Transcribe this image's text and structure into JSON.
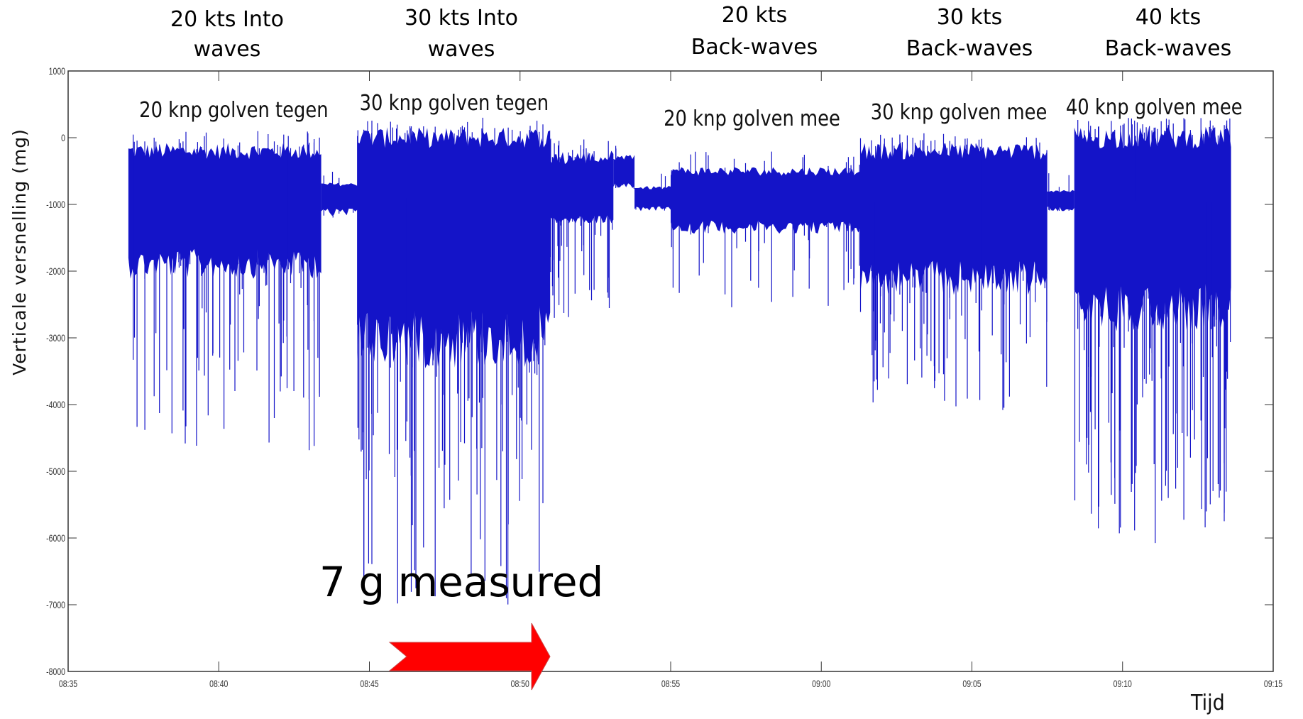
{
  "chart_data": {
    "type": "line",
    "title": "",
    "xlabel": "Tijd",
    "ylabel": "Verticale versnelling (mg)",
    "ylim": [
      -8000,
      1000
    ],
    "y_ticks": [
      1000,
      0,
      -1000,
      -2000,
      -3000,
      -4000,
      -5000,
      -6000,
      -7000,
      -8000
    ],
    "y_tick_labels": [
      "1000",
      "0",
      "-1000",
      "-2000",
      "-3000",
      "-4000",
      "-5000",
      "-6000",
      "-7000",
      "-8000"
    ],
    "xlim": [
      "08:35",
      "09:15"
    ],
    "x_ticks": [
      "08:35",
      "08:40",
      "08:45",
      "08:50",
      "08:55",
      "09:00",
      "09:05",
      "09:10",
      "09:15"
    ],
    "x_tick_labels": [
      "08:35",
      "08:40",
      "08:45",
      "08:50",
      "08:55",
      "09:00",
      "09:05",
      "09:10",
      "09:15"
    ],
    "grid": false,
    "series": [
      {
        "color": "#1414c8",
        "segments": [
          {
            "start": "08:37.0",
            "end": "08:43.4",
            "baseline": -900,
            "upper": -200,
            "lower_dense": -1800,
            "spikes_min": -4800,
            "intensity": "high"
          },
          {
            "start": "08:43.4",
            "end": "08:44.6",
            "baseline": -850,
            "upper": -700,
            "lower_dense": -1100,
            "spikes_min": -1200,
            "intensity": "low"
          },
          {
            "start": "08:44.6",
            "end": "08:51.0",
            "baseline": -900,
            "upper": 0,
            "lower_dense": -2800,
            "spikes_min": -7200,
            "intensity": "very_high"
          },
          {
            "start": "08:51.0",
            "end": "08:53.1",
            "baseline": -950,
            "upper": -300,
            "lower_dense": -1200,
            "spikes_min": -2900,
            "intensity": "medium"
          },
          {
            "start": "08:53.1",
            "end": "08:53.8",
            "baseline": -550,
            "upper": -300,
            "lower_dense": -700,
            "spikes_min": -800,
            "intensity": "bump"
          },
          {
            "start": "08:53.8",
            "end": "08:55.0",
            "baseline": -900,
            "upper": -750,
            "lower_dense": -1050,
            "spikes_min": -1100,
            "intensity": "low"
          },
          {
            "start": "08:55.0",
            "end": "09:01.3",
            "baseline": -900,
            "upper": -500,
            "lower_dense": -1300,
            "spikes_min": -2600,
            "intensity": "medium"
          },
          {
            "start": "09:01.3",
            "end": "09:07.5",
            "baseline": -950,
            "upper": -200,
            "lower_dense": -2000,
            "spikes_min": -4100,
            "intensity": "high"
          },
          {
            "start": "09:07.5",
            "end": "09:08.4",
            "baseline": -900,
            "upper": -800,
            "lower_dense": -1050,
            "spikes_min": -1100,
            "intensity": "low"
          },
          {
            "start": "09:08.4",
            "end": "09:13.6",
            "baseline": -950,
            "upper": 0,
            "lower_dense": -2400,
            "spikes_min": -6100,
            "intensity": "very_high"
          }
        ]
      }
    ]
  },
  "segment_labels": [
    {
      "text": "20 knp golven tegen"
    },
    {
      "text": "30 knp golven tegen"
    },
    {
      "text": "20 knp golven mee"
    },
    {
      "text": "30 knp golven mee"
    },
    {
      "text": "40 knp golven mee"
    }
  ],
  "top_titles": [
    {
      "line1": "20 kts Into",
      "line2": "waves"
    },
    {
      "line1": "30 kts Into",
      "line2": "waves"
    },
    {
      "line1": "20 kts",
      "line2": "Back-waves"
    },
    {
      "line1": "30 kts",
      "line2": "Back-waves"
    },
    {
      "line1": "40 kts",
      "line2": "Back-waves"
    }
  ],
  "annotation": {
    "text": "7 g measured",
    "arrow_color": "#ff0000"
  }
}
